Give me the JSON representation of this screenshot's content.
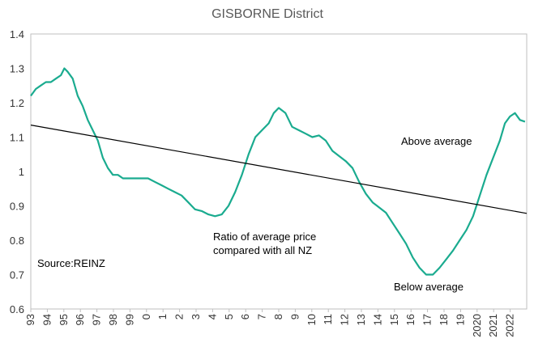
{
  "chart_data": {
    "type": "line",
    "title": "GISBORNE District",
    "xlabel": "",
    "ylabel": "",
    "ylim": [
      0.6,
      1.4
    ],
    "yticks": [
      "0.6",
      "0.7",
      "0.8",
      "0.9",
      "1",
      "1.1",
      "1.2",
      "1.3",
      "1.4"
    ],
    "xlim": [
      1993,
      2022.6
    ],
    "xtick_labels": [
      "93",
      "94",
      "95",
      "96",
      "97",
      "98",
      "99",
      "0",
      "1",
      "2",
      "3",
      "4",
      "5",
      "6",
      "7",
      "8",
      "9",
      "10",
      "11",
      "12",
      "13",
      "14",
      "15",
      "16",
      "17",
      "18",
      "19",
      "2020",
      "2021",
      "2022"
    ],
    "grid": false,
    "legend": "none",
    "annotations": {
      "source": "Source:REINZ",
      "ratio_label_line1": "Ratio of average price",
      "ratio_label_line2": "compared with all NZ",
      "above": "Above average",
      "below": "Below average"
    },
    "series": [
      {
        "color": "#1aab8f",
        "x": [
          1993.0,
          1993.3,
          1993.6,
          1993.9,
          1994.2,
          1994.5,
          1994.8,
          1995.0,
          1995.2,
          1995.5,
          1995.8,
          1996.1,
          1996.4,
          1996.7,
          1997.0,
          1997.3,
          1997.6,
          1997.9,
          1998.2,
          1998.5,
          1998.8,
          1999.1,
          1999.4,
          1999.7,
          2000.0,
          2000.4,
          2000.8,
          2001.2,
          2001.6,
          2002.0,
          2002.4,
          2002.8,
          2003.2,
          2003.6,
          2004.0,
          2004.4,
          2004.8,
          2005.2,
          2005.6,
          2006.0,
          2006.4,
          2006.8,
          2007.2,
          2007.5,
          2007.8,
          2008.2,
          2008.6,
          2009.0,
          2009.4,
          2009.8,
          2010.2,
          2010.6,
          2011.0,
          2011.4,
          2011.8,
          2012.2,
          2012.6,
          2013.0,
          2013.4,
          2013.8,
          2014.2,
          2014.6,
          2015.0,
          2015.4,
          2015.8,
          2016.2,
          2016.6,
          2017.0,
          2017.4,
          2017.8,
          2018.2,
          2018.6,
          2019.0,
          2019.4,
          2019.8,
          2020.2,
          2020.6,
          2021.0,
          2021.3,
          2021.6,
          2021.9,
          2022.2,
          2022.5
        ],
        "values": [
          1.22,
          1.24,
          1.25,
          1.26,
          1.26,
          1.27,
          1.28,
          1.3,
          1.29,
          1.27,
          1.22,
          1.19,
          1.15,
          1.12,
          1.09,
          1.04,
          1.01,
          0.99,
          0.99,
          0.98,
          0.98,
          0.98,
          0.98,
          0.98,
          0.98,
          0.97,
          0.96,
          0.95,
          0.94,
          0.93,
          0.91,
          0.89,
          0.885,
          0.875,
          0.87,
          0.875,
          0.9,
          0.94,
          0.99,
          1.05,
          1.1,
          1.12,
          1.14,
          1.17,
          1.185,
          1.17,
          1.13,
          1.12,
          1.11,
          1.1,
          1.105,
          1.09,
          1.06,
          1.045,
          1.03,
          1.01,
          0.97,
          0.935,
          0.91,
          0.895,
          0.88,
          0.85,
          0.82,
          0.79,
          0.75,
          0.72,
          0.7,
          0.7,
          0.72,
          0.745,
          0.77,
          0.8,
          0.83,
          0.87,
          0.93,
          0.99,
          1.04,
          1.09,
          1.14,
          1.16,
          1.17,
          1.15,
          1.145
        ]
      },
      {
        "color": "#000000",
        "x": [
          1993.0,
          2022.6
        ],
        "values": [
          1.135,
          0.878
        ]
      }
    ]
  }
}
